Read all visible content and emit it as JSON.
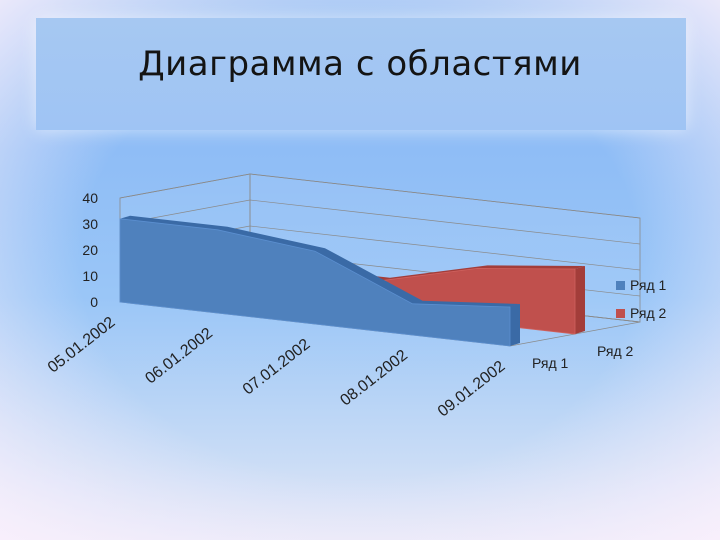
{
  "slide": {
    "title": "Диаграмма с областями"
  },
  "chart_data": {
    "type": "area",
    "title": "",
    "categories": [
      "05.01.2002",
      "06.01.2002",
      "07.01.2002",
      "08.01.2002",
      "09.01.2002"
    ],
    "series": [
      {
        "name": "Ряд 1",
        "color": "#4f81bd",
        "values": [
          32,
          32,
          28,
          12,
          15
        ]
      },
      {
        "name": "Ряд 2",
        "color": "#c0504d",
        "values": [
          12,
          12,
          12,
          21,
          25
        ]
      }
    ],
    "depth_labels": [
      "Ряд 2",
      "Ряд 1"
    ],
    "y_ticks": [
      "0",
      "10",
      "20",
      "30",
      "40"
    ],
    "ylim": [
      0,
      40
    ],
    "legend_position": "right",
    "grid": true,
    "three_d": true
  }
}
